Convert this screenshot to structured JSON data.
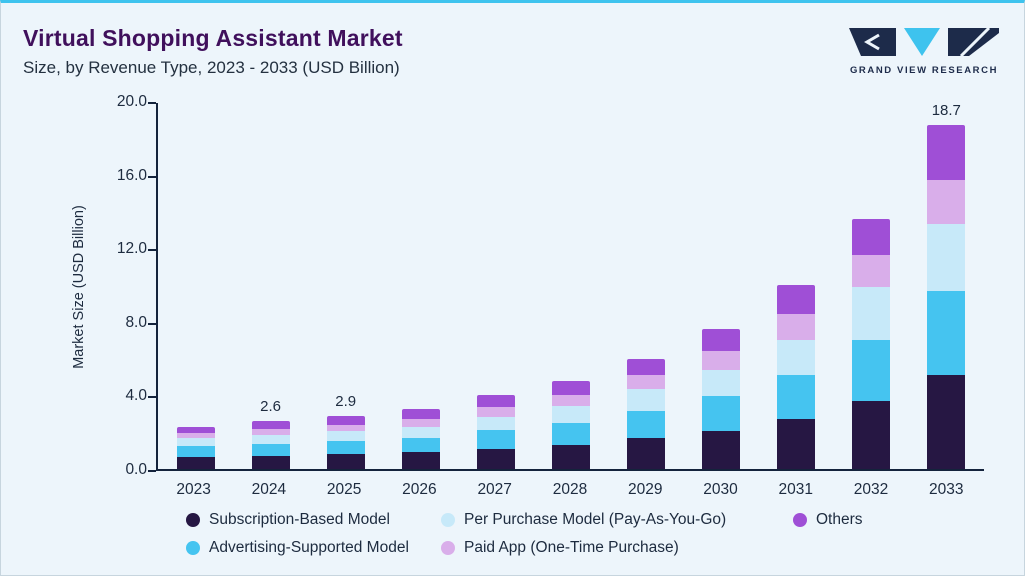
{
  "header": {
    "title": "Virtual Shopping Assistant Market",
    "subtitle": "Size, by Revenue Type, 2023 - 2033 (USD Billion)",
    "logo_text": "GRAND VIEW RESEARCH"
  },
  "chart_data": {
    "type": "bar",
    "stacked": true,
    "title": "Virtual Shopping Assistant Market Size, by Revenue Type, 2023 - 2033 (USD Billion)",
    "xlabel": "",
    "ylabel": "Market Size (USD Billion)",
    "ylim": [
      0,
      20
    ],
    "yticks": [
      "0.0",
      "4.0",
      "8.0",
      "12.0",
      "16.0",
      "20.0"
    ],
    "grid": false,
    "legend_position": "bottom",
    "categories": [
      "2023",
      "2024",
      "2025",
      "2026",
      "2027",
      "2028",
      "2029",
      "2030",
      "2031",
      "2032",
      "2033"
    ],
    "bar_total_labels": [
      "",
      "2.6",
      "2.9",
      "",
      "",
      "",
      "",
      "",
      "",
      "",
      "18.7"
    ],
    "series": [
      {
        "name": "Subscription-Based Model",
        "color": "#261743",
        "values": [
          0.65,
          0.7,
          0.8,
          0.9,
          1.1,
          1.3,
          1.7,
          2.05,
          2.7,
          3.7,
          5.1
        ]
      },
      {
        "name": "Advertising-Supported Model",
        "color": "#45c4f0",
        "values": [
          0.6,
          0.65,
          0.7,
          0.8,
          1.0,
          1.2,
          1.45,
          1.9,
          2.4,
          3.3,
          4.55
        ]
      },
      {
        "name": "Per Purchase Model (Pay-As-You-Go)",
        "color": "#c7e9f9",
        "values": [
          0.45,
          0.5,
          0.55,
          0.6,
          0.75,
          0.9,
          1.2,
          1.45,
          1.9,
          2.9,
          3.65
        ]
      },
      {
        "name": "Paid App (One-Time Purchase)",
        "color": "#d9aeea",
        "values": [
          0.25,
          0.3,
          0.35,
          0.4,
          0.5,
          0.6,
          0.75,
          1.0,
          1.4,
          1.75,
          2.4
        ]
      },
      {
        "name": "Others",
        "color": "#9f4fd6",
        "values": [
          0.35,
          0.45,
          0.5,
          0.55,
          0.65,
          0.8,
          0.9,
          1.2,
          1.6,
          1.95,
          3.0
        ]
      }
    ],
    "legend_rows": [
      [
        0,
        2,
        4
      ],
      [
        1,
        3
      ]
    ]
  }
}
